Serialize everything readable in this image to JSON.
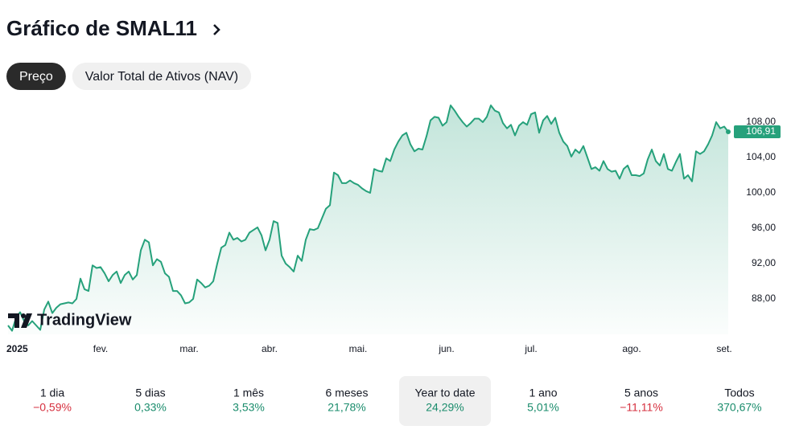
{
  "header": {
    "title": "Gráfico de SMAL11"
  },
  "tabs": [
    {
      "label": "Preço",
      "selected": true
    },
    {
      "label": "Valor Total de Ativos (NAV)",
      "selected": false
    }
  ],
  "chart_data": {
    "type": "area",
    "watermark": "TradingView",
    "last_price_label": "106,91",
    "x": [
      0,
      1,
      2,
      3,
      4,
      5,
      6,
      7,
      8,
      9,
      10,
      11,
      12,
      13,
      14,
      15,
      16,
      17,
      18,
      19,
      20,
      21,
      22,
      23,
      24,
      25,
      26,
      27,
      28,
      29,
      30,
      31,
      32,
      33,
      34,
      35,
      36,
      37,
      38,
      39,
      40,
      41,
      42,
      43,
      44,
      45,
      46,
      47,
      48,
      49,
      50,
      51,
      52,
      53,
      54,
      55,
      56,
      57,
      58,
      59,
      60,
      61,
      62,
      63,
      64,
      65,
      66,
      67,
      68,
      69,
      70,
      71,
      72,
      73,
      74,
      75,
      76,
      77,
      78,
      79,
      80,
      81,
      82,
      83,
      84,
      85,
      86,
      87,
      88,
      89,
      90,
      91,
      92,
      93,
      94,
      95,
      96,
      97,
      98,
      99,
      100,
      101,
      102,
      103,
      104,
      105,
      106,
      107,
      108,
      109,
      110,
      111,
      112,
      113,
      114,
      115,
      116,
      117,
      118,
      119,
      120,
      121,
      122,
      123,
      124,
      125,
      126,
      127,
      128,
      129,
      130,
      131,
      132,
      133,
      134,
      135,
      136,
      137,
      138,
      139,
      140,
      141,
      142,
      143,
      144,
      145,
      146,
      147,
      148,
      149,
      150,
      151,
      152,
      153,
      154,
      155,
      156,
      157,
      158,
      159,
      160,
      161,
      162,
      163,
      164,
      165,
      166,
      167,
      168,
      169,
      170,
      171,
      172,
      173,
      174,
      175,
      176,
      177,
      178,
      179
    ],
    "series": [
      {
        "name": "SMAL11",
        "color": "#26a17b",
        "values": [
          85.0,
          84.4,
          85.9,
          86.5,
          85.5,
          85.0,
          85.5,
          85.0,
          84.5,
          86.8,
          87.7,
          86.4,
          87.0,
          87.4,
          87.5,
          87.6,
          87.5,
          88.0,
          90.3,
          89.1,
          88.9,
          91.8,
          91.5,
          91.6,
          90.9,
          90.0,
          90.7,
          91.1,
          89.8,
          90.7,
          91.1,
          90.2,
          90.7,
          93.5,
          94.7,
          94.4,
          91.8,
          92.5,
          92.2,
          90.9,
          90.5,
          88.9,
          88.9,
          88.4,
          87.5,
          87.6,
          88.0,
          90.2,
          89.8,
          89.3,
          89.5,
          90.0,
          92.0,
          93.8,
          94.1,
          95.5,
          94.7,
          94.9,
          94.5,
          94.7,
          95.5,
          95.8,
          96.1,
          95.2,
          93.5,
          94.7,
          96.8,
          96.6,
          92.9,
          92.0,
          91.6,
          91.1,
          92.9,
          92.3,
          94.7,
          95.9,
          95.8,
          96.0,
          97.1,
          98.2,
          98.6,
          102.3,
          102.0,
          101.1,
          101.1,
          101.4,
          101.1,
          100.9,
          100.5,
          100.2,
          100.0,
          102.7,
          102.5,
          102.4,
          103.9,
          103.6,
          104.9,
          105.8,
          106.5,
          106.8,
          105.5,
          104.7,
          105.0,
          104.9,
          106.4,
          108.2,
          108.6,
          108.5,
          107.6,
          108.0,
          109.9,
          109.3,
          108.6,
          108.0,
          107.5,
          107.9,
          108.4,
          108.4,
          108.0,
          108.6,
          109.9,
          109.3,
          109.1,
          107.9,
          107.3,
          107.7,
          106.5,
          107.6,
          108.0,
          107.7,
          108.9,
          109.1,
          106.8,
          108.2,
          108.7,
          107.8,
          108.5,
          106.8,
          105.8,
          105.3,
          104.1,
          104.9,
          104.5,
          105.3,
          104.0,
          102.7,
          102.9,
          102.5,
          103.6,
          102.7,
          102.4,
          102.5,
          101.6,
          102.7,
          103.1,
          102.0,
          102.0,
          101.9,
          102.2,
          103.8,
          104.9,
          103.6,
          103.1,
          104.4,
          102.7,
          102.5,
          103.5,
          104.4,
          101.6,
          102.0,
          101.3,
          104.7,
          104.4,
          104.7,
          105.5,
          106.5,
          108.0,
          107.3,
          107.5,
          106.91
        ]
      }
    ],
    "xlim": [
      0,
      179
    ],
    "xticks": [
      {
        "value": 0,
        "label": "2025"
      },
      {
        "value": 23,
        "label": "fev."
      },
      {
        "value": 45,
        "label": "mar."
      },
      {
        "value": 65,
        "label": "abr."
      },
      {
        "value": 87,
        "label": "mai."
      },
      {
        "value": 109,
        "label": "jun."
      },
      {
        "value": 130,
        "label": "jul."
      },
      {
        "value": 155,
        "label": "ago."
      },
      {
        "value": 178,
        "label": "set."
      }
    ],
    "ylim": [
      84,
      110
    ],
    "yticks": [
      {
        "value": 88,
        "label": "88,00"
      },
      {
        "value": 92,
        "label": "92,00"
      },
      {
        "value": 96,
        "label": "96,00"
      },
      {
        "value": 100,
        "label": "100,00"
      },
      {
        "value": 104,
        "label": "104,00"
      },
      {
        "value": 108,
        "label": "108,00"
      }
    ],
    "grid": false
  },
  "periods": [
    {
      "label": "1 dia",
      "change": "−0,59%",
      "color": "#d6303f"
    },
    {
      "label": "5 dias",
      "change": "0,33%",
      "color": "#1a8c6c"
    },
    {
      "label": "1 mês",
      "change": "3,53%",
      "color": "#1a8c6c"
    },
    {
      "label": "6 meses",
      "change": "21,78%",
      "color": "#1a8c6c"
    },
    {
      "label": "Year to date",
      "change": "24,29%",
      "color": "#1a8c6c",
      "selected": true
    },
    {
      "label": "1 ano",
      "change": "5,01%",
      "color": "#1a8c6c"
    },
    {
      "label": "5 anos",
      "change": "−11,11%",
      "color": "#d6303f"
    },
    {
      "label": "Todos",
      "change": "370,67%",
      "color": "#1a8c6c"
    }
  ]
}
